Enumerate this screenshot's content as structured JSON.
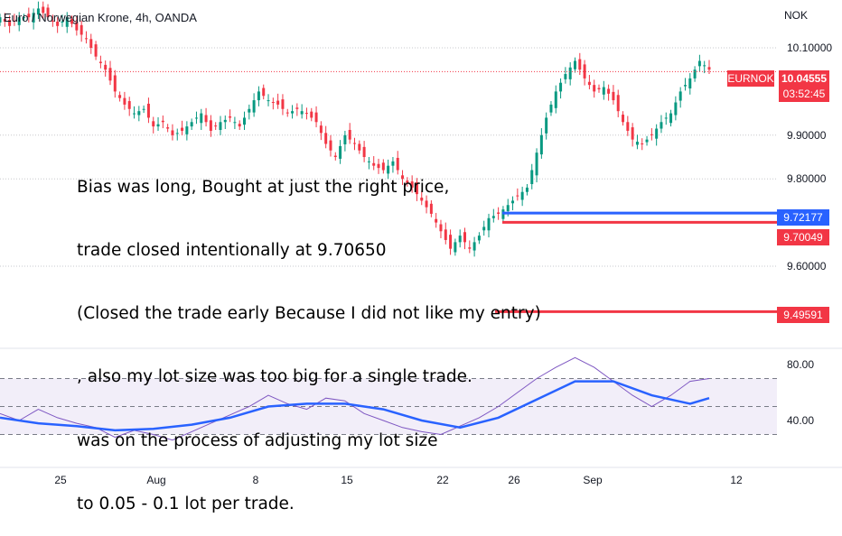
{
  "header": {
    "title": "Euro / Norwegian Krone, 4h, OANDA",
    "currency": "NOK"
  },
  "annotation": {
    "lines": [
      "Bias was long, Bought at just the right price,",
      "trade closed intentionally at 9.70650",
      "(Closed the trade early Because I did not like my entry)",
      ", also my lot size was too big for a single trade.",
      "was on the process of adjusting my lot size",
      "to 0.05 - 0.1 lot per trade."
    ]
  },
  "price_tags": {
    "symbol": "EURNOK",
    "last_price": "10.04555",
    "countdown": "03:52:45",
    "blue_level": "9.72177",
    "red_level": "9.70049",
    "red_level_low": "9.49591"
  },
  "colors": {
    "up": "#089981",
    "down": "#f23645",
    "blue": "#2962ff",
    "rsi": "#7e57c2",
    "rsi_ma": "#2962ff",
    "text": "#131722"
  },
  "chart_data": [
    {
      "type": "candlestick",
      "title": "Euro / Norwegian Krone, 4h, OANDA",
      "ylabel": "NOK",
      "y_ticks": [
        "10.10000",
        "9.90000",
        "9.80000",
        "9.60000"
      ],
      "y_tick_values": [
        10.1,
        9.9,
        9.8,
        9.6
      ],
      "ylim": [
        9.4,
        10.2
      ],
      "x_ticks": [
        "25",
        "Aug",
        "8",
        "15",
        "22",
        "26",
        "Sep",
        "12"
      ],
      "close_path": [
        [
          0,
          10.17
        ],
        [
          5,
          10.15
        ],
        [
          10,
          10.17
        ],
        [
          15,
          10.17
        ],
        [
          20,
          10.19
        ],
        [
          25,
          10.17
        ],
        [
          30,
          10.15
        ],
        [
          35,
          10.17
        ],
        [
          40,
          10.14
        ],
        [
          45,
          10.12
        ],
        [
          50,
          10.08
        ],
        [
          55,
          10.05
        ],
        [
          60,
          10.0
        ],
        [
          65,
          9.97
        ],
        [
          70,
          9.95
        ],
        [
          75,
          9.96
        ],
        [
          80,
          9.92
        ],
        [
          85,
          9.93
        ],
        [
          90,
          9.9
        ],
        [
          95,
          9.91
        ],
        [
          100,
          9.93
        ],
        [
          105,
          9.95
        ],
        [
          110,
          9.91
        ],
        [
          115,
          9.93
        ],
        [
          120,
          9.94
        ],
        [
          125,
          9.92
        ],
        [
          130,
          9.96
        ],
        [
          135,
          10.0
        ],
        [
          140,
          9.98
        ],
        [
          145,
          9.97
        ],
        [
          150,
          9.95
        ],
        [
          155,
          9.96
        ],
        [
          160,
          9.95
        ],
        [
          165,
          9.93
        ],
        [
          170,
          9.88
        ],
        [
          175,
          9.85
        ],
        [
          180,
          9.9
        ],
        [
          185,
          9.88
        ],
        [
          190,
          9.85
        ],
        [
          195,
          9.83
        ],
        [
          200,
          9.82
        ],
        [
          205,
          9.84
        ],
        [
          210,
          9.8
        ],
        [
          215,
          9.78
        ],
        [
          220,
          9.75
        ],
        [
          225,
          9.72
        ],
        [
          230,
          9.68
        ],
        [
          235,
          9.64
        ],
        [
          240,
          9.67
        ],
        [
          245,
          9.64
        ],
        [
          250,
          9.67
        ],
        [
          255,
          9.71
        ],
        [
          260,
          9.72
        ],
        [
          265,
          9.74
        ],
        [
          270,
          9.76
        ],
        [
          275,
          9.78
        ],
        [
          280,
          9.86
        ],
        [
          285,
          9.94
        ],
        [
          290,
          10.0
        ],
        [
          295,
          10.04
        ],
        [
          300,
          10.07
        ],
        [
          305,
          10.03
        ],
        [
          310,
          10.0
        ],
        [
          315,
          10.01
        ],
        [
          320,
          9.98
        ],
        [
          325,
          9.93
        ],
        [
          330,
          9.89
        ],
        [
          335,
          9.88
        ],
        [
          340,
          9.9
        ],
        [
          345,
          9.93
        ],
        [
          350,
          9.95
        ],
        [
          355,
          10.0
        ],
        [
          360,
          10.03
        ],
        [
          365,
          10.07
        ],
        [
          370,
          10.05
        ]
      ],
      "last_price": 10.04555,
      "levels": [
        {
          "name": "blue",
          "value": 9.72177,
          "label": "9.72177"
        },
        {
          "name": "red",
          "value": 9.70049,
          "label": "9.70049"
        },
        {
          "name": "red-low",
          "value": 9.49591,
          "label": "9.49591"
        }
      ]
    },
    {
      "type": "line",
      "y_ticks": [
        "80.00",
        "40.00"
      ],
      "y_tick_values": [
        80,
        40
      ],
      "ylim": [
        20,
        100
      ],
      "band": [
        30,
        70
      ],
      "series": [
        {
          "color": "#7e57c2",
          "points": [
            [
              0,
              45
            ],
            [
              10,
              40
            ],
            [
              20,
              48
            ],
            [
              30,
              42
            ],
            [
              40,
              38
            ],
            [
              50,
              35
            ],
            [
              60,
              28
            ],
            [
              70,
              33
            ],
            [
              80,
              30
            ],
            [
              90,
              26
            ],
            [
              100,
              32
            ],
            [
              110,
              38
            ],
            [
              120,
              44
            ],
            [
              130,
              50
            ],
            [
              140,
              58
            ],
            [
              150,
              52
            ],
            [
              160,
              48
            ],
            [
              170,
              56
            ],
            [
              180,
              54
            ],
            [
              190,
              45
            ],
            [
              200,
              40
            ],
            [
              210,
              35
            ],
            [
              220,
              32
            ],
            [
              230,
              30
            ],
            [
              240,
              36
            ],
            [
              250,
              42
            ],
            [
              260,
              50
            ],
            [
              270,
              60
            ],
            [
              280,
              70
            ],
            [
              290,
              78
            ],
            [
              300,
              85
            ],
            [
              310,
              78
            ],
            [
              320,
              68
            ],
            [
              330,
              58
            ],
            [
              340,
              50
            ],
            [
              350,
              58
            ],
            [
              360,
              68
            ],
            [
              370,
              70
            ]
          ]
        },
        {
          "color": "#2962ff",
          "points": [
            [
              0,
              42
            ],
            [
              20,
              38
            ],
            [
              40,
              36
            ],
            [
              60,
              33
            ],
            [
              80,
              34
            ],
            [
              100,
              37
            ],
            [
              120,
              42
            ],
            [
              140,
              50
            ],
            [
              160,
              52
            ],
            [
              180,
              52
            ],
            [
              200,
              48
            ],
            [
              220,
              40
            ],
            [
              240,
              35
            ],
            [
              260,
              42
            ],
            [
              280,
              55
            ],
            [
              300,
              68
            ],
            [
              320,
              68
            ],
            [
              340,
              58
            ],
            [
              360,
              52
            ],
            [
              370,
              56
            ]
          ]
        }
      ]
    }
  ]
}
